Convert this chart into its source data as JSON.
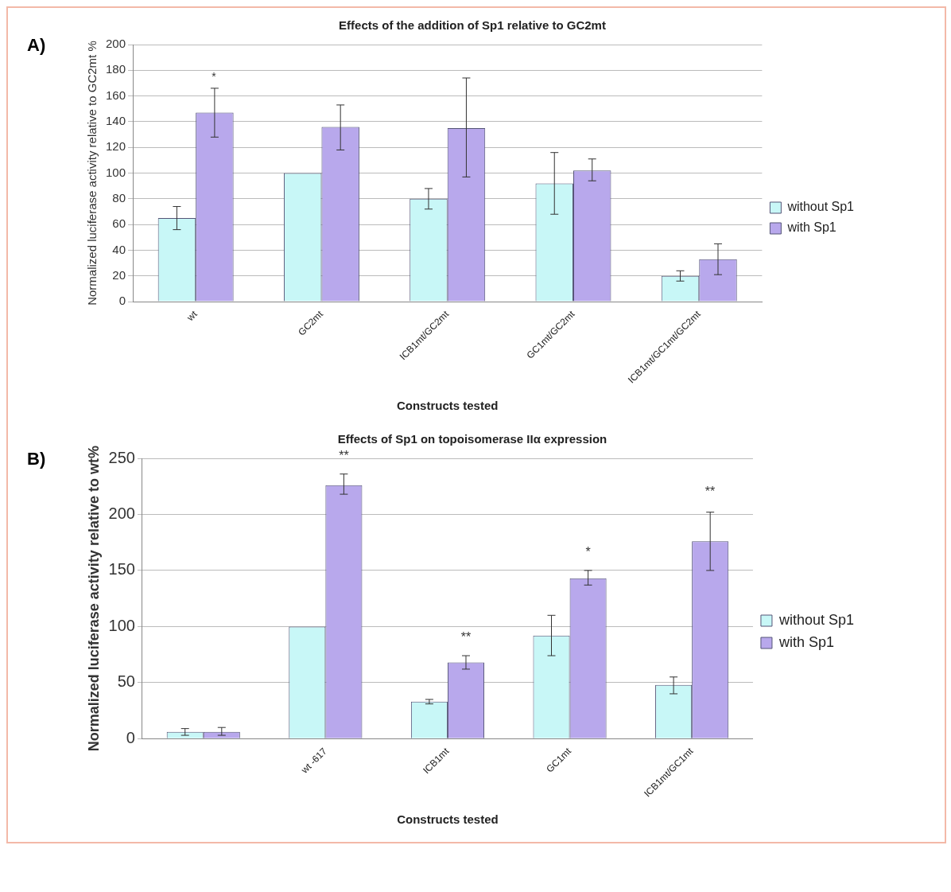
{
  "chart_data": [
    {
      "type": "bar",
      "title": "Effects of the addition of Sp1 relative to GC2mt",
      "xlabel": "Constructs tested",
      "ylabel": "Normalized luciferase activity relative to GC2mt %",
      "categories": [
        "wt",
        "GC2mt",
        "ICB1mt/GC2mt",
        "GC1mt/GC2mt",
        "ICB1mt/GC1mt/GC2mt"
      ],
      "series": [
        {
          "name": "without Sp1",
          "color": "#c8f7f7",
          "values": [
            65,
            100,
            80,
            92,
            20
          ],
          "errors": [
            [
              56,
              74
            ],
            null,
            [
              72,
              88
            ],
            [
              68,
              116
            ],
            [
              16,
              24
            ]
          ]
        },
        {
          "name": "with Sp1",
          "color": "#b8a8ec",
          "values": [
            147,
            136,
            135,
            102,
            33
          ],
          "errors": [
            [
              128,
              166
            ],
            [
              118,
              153
            ],
            [
              97,
              174
            ],
            [
              94,
              111
            ],
            [
              21,
              45
            ]
          ]
        }
      ],
      "ylim": [
        0,
        200
      ],
      "yticks": [
        0,
        20,
        40,
        60,
        80,
        100,
        120,
        140,
        160,
        180,
        200
      ],
      "grid": "y",
      "legend": "right",
      "annotations": [
        "A)",
        "*"
      ]
    },
    {
      "type": "bar",
      "title": "Effects of Sp1 on topoisomerase IIα expression",
      "xlabel": "Constructs tested",
      "ylabel": "Normalized luciferase activity relative to wt%",
      "categories": [
        null,
        "wt -617",
        "ICB1mt",
        "GC1mt",
        "ICB1mt/GC1mt"
      ],
      "series": [
        {
          "name": "without Sp1",
          "color": "#c8f7f7",
          "values": [
            6,
            100,
            33,
            92,
            48
          ],
          "errors": [
            [
              3,
              9
            ],
            null,
            [
              31,
              35
            ],
            [
              74,
              110
            ],
            [
              40,
              55
            ]
          ]
        },
        {
          "name": "with Sp1",
          "color": "#b8a8ec",
          "values": [
            6,
            226,
            68,
            143,
            176
          ],
          "errors": [
            [
              3,
              10
            ],
            [
              218,
              236
            ],
            [
              62,
              74
            ],
            [
              137,
              150
            ],
            [
              150,
              202
            ]
          ]
        }
      ],
      "ylim": [
        0,
        250
      ],
      "yticks": [
        0,
        50,
        100,
        150,
        200,
        250
      ],
      "grid": "y",
      "legend": "right",
      "annotations": [
        "B)",
        {
          "text": "**",
          "x": "wt -617",
          "y": 226
        },
        {
          "text": "**",
          "x": "ICB1mt",
          "y": 68
        },
        {
          "text": "*",
          "x": "GC1mt",
          "y": 143
        },
        "**"
      ]
    }
  ]
}
